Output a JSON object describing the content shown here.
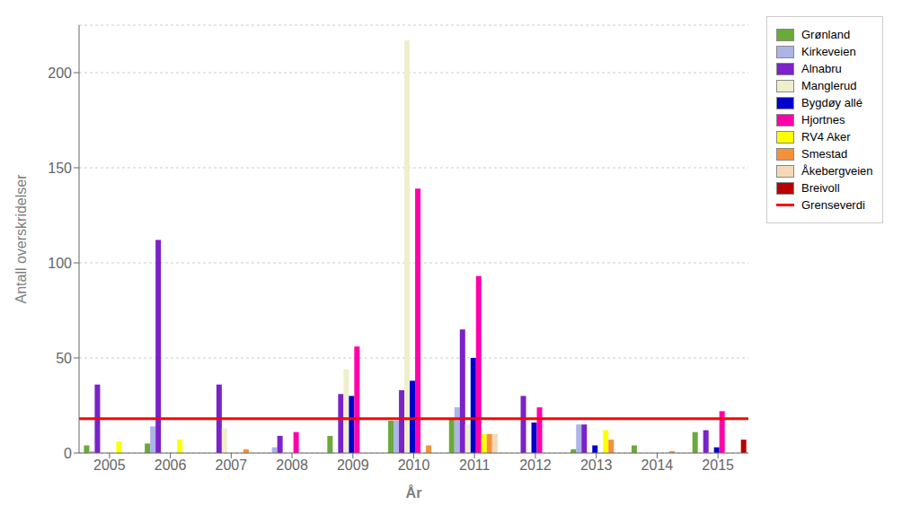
{
  "chart_data": {
    "type": "bar",
    "xlabel": "År",
    "ylabel": "Antall overskridelser",
    "categories": [
      "2005",
      "2006",
      "2007",
      "2008",
      "2009",
      "2010",
      "2011",
      "2012",
      "2013",
      "2014",
      "2015"
    ],
    "series": [
      {
        "name": "Grønland",
        "color": "#6aaa3a",
        "values": [
          4,
          5,
          0,
          0,
          9,
          17,
          18,
          0,
          2,
          4,
          11
        ]
      },
      {
        "name": "Kirkeveien",
        "color": "#adb4e8",
        "values": [
          1,
          14,
          0,
          3,
          0,
          17,
          24,
          0,
          15,
          0,
          0
        ]
      },
      {
        "name": "Alnabru",
        "color": "#7b22c8",
        "values": [
          36,
          112,
          36,
          9,
          31,
          33,
          65,
          30,
          15,
          0,
          12
        ]
      },
      {
        "name": "Manglerud",
        "color": "#f0eecc",
        "values": [
          0,
          0,
          13,
          0,
          44,
          217,
          15,
          0,
          0,
          0,
          0
        ]
      },
      {
        "name": "Bygdøy allé",
        "color": "#0000cc",
        "values": [
          0,
          0,
          0,
          0,
          30,
          38,
          50,
          16,
          4,
          0,
          3
        ]
      },
      {
        "name": "Hjortnes",
        "color": "#ff00aa",
        "values": [
          0,
          0,
          0,
          11,
          56,
          139,
          93,
          24,
          0,
          0,
          22
        ]
      },
      {
        "name": "RV4 Aker",
        "color": "#ffff00",
        "values": [
          6,
          7,
          0,
          0,
          0,
          0,
          10,
          0,
          12,
          0,
          0
        ]
      },
      {
        "name": "Smestad",
        "color": "#f4923c",
        "values": [
          0,
          0,
          2,
          0,
          0,
          4,
          10,
          0,
          7,
          1,
          0
        ]
      },
      {
        "name": "Åkebergveien",
        "color": "#f5d8b8",
        "values": [
          0,
          0,
          0,
          0,
          0,
          0,
          10,
          0,
          0,
          0,
          0
        ]
      },
      {
        "name": "Breivoll",
        "color": "#b80000",
        "values": [
          0,
          0,
          0,
          0,
          0,
          0,
          0,
          0,
          0,
          0,
          7
        ]
      }
    ],
    "hlines": [
      {
        "name": "Grenseverdi",
        "y": 18,
        "color": "red"
      }
    ],
    "ylim": [
      0,
      225
    ],
    "yticks": [
      0,
      50,
      100,
      150,
      200
    ],
    "grid": true,
    "legend": "right"
  }
}
